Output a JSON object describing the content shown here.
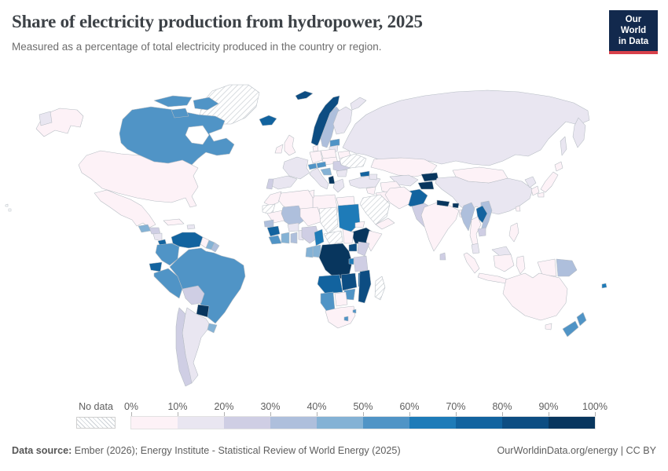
{
  "header": {
    "title": "Share of electricity production from hydropower, 2025",
    "subtitle": "Measured as a percentage of total electricity produced in the country or region."
  },
  "logo": {
    "line1": "Our World",
    "line2": "in Data",
    "bg_color": "#12294d",
    "accent_color": "#d8414b"
  },
  "legend": {
    "no_data_label": "No data",
    "tick_labels": [
      "0%",
      "10%",
      "20%",
      "30%",
      "40%",
      "50%",
      "60%",
      "70%",
      "80%",
      "90%",
      "100%"
    ],
    "colors": [
      "#fdf2f7",
      "#e9e6f1",
      "#cfcee4",
      "#aebfdc",
      "#84b2d5",
      "#5094c6",
      "#1e7bb8",
      "#12639f",
      "#0d4d82",
      "#08365e"
    ]
  },
  "footer": {
    "source_label": "Data source:",
    "source_text": " Ember (2026); Energy Institute - Statistical Review of World Energy (2025)",
    "right_text": "OurWorldinData.org/energy | CC BY"
  },
  "chart_data": {
    "type": "choropleth-map",
    "title": "Share of electricity production from hydropower, 2025",
    "unit": "% of total electricity production",
    "legend_buckets": [
      "0-10%",
      "10-20%",
      "20-30%",
      "30-40%",
      "40-50%",
      "50-60%",
      "60-70%",
      "70-80%",
      "80-90%",
      "90-100%"
    ],
    "format": "country: [bucket 1-10 matching legend colors, 0 = no data; approximate value in %]",
    "countries": {
      "greenland": [
        0,
        null
      ],
      "canada": [
        6,
        58
      ],
      "usa": [
        1,
        6
      ],
      "mexico": [
        1,
        4
      ],
      "guatemala": [
        5,
        42
      ],
      "honduras": [
        3,
        26
      ],
      "nicaragua": [
        2,
        14
      ],
      "costa-rica": [
        8,
        74
      ],
      "panama": [
        6,
        55
      ],
      "cuba": [
        1,
        1
      ],
      "dominican-republic": [
        2,
        12
      ],
      "venezuela": [
        8,
        73
      ],
      "colombia": [
        6,
        58
      ],
      "ecuador": [
        8,
        72
      ],
      "peru": [
        6,
        54
      ],
      "brazil": [
        6,
        57
      ],
      "bolivia": [
        3,
        26
      ],
      "paraguay": [
        10,
        100
      ],
      "argentina": [
        2,
        16
      ],
      "chile": [
        3,
        24
      ],
      "uruguay": [
        5,
        44
      ],
      "guyana": [
        1,
        3
      ],
      "suriname": [
        5,
        45
      ],
      "french-guiana": [
        4,
        35
      ],
      "iceland": [
        8,
        71
      ],
      "norway": [
        9,
        88
      ],
      "sweden": [
        4,
        38
      ],
      "finland": [
        2,
        15
      ],
      "denmark": [
        1,
        0
      ],
      "united-kingdom": [
        1,
        2
      ],
      "ireland": [
        1,
        2
      ],
      "france": [
        2,
        11
      ],
      "spain": [
        2,
        13
      ],
      "portugal": [
        3,
        23
      ],
      "germany": [
        1,
        4
      ],
      "switzerland": [
        6,
        56
      ],
      "austria": [
        6,
        58
      ],
      "czechia": [
        1,
        3
      ],
      "italy": [
        2,
        14
      ],
      "poland": [
        1,
        2
      ],
      "croatia": [
        5,
        45
      ],
      "romania": [
        3,
        27
      ],
      "bulgaria": [
        2,
        12
      ],
      "albania": [
        10,
        99
      ],
      "greece": [
        2,
        12
      ],
      "belarus": [
        1,
        2
      ],
      "ukraine": [
        0,
        null
      ],
      "latvia": [
        6,
        58
      ],
      "lithuania": [
        2,
        12
      ],
      "russia": [
        2,
        17
      ],
      "kazakhstan": [
        1,
        9
      ],
      "uzbekistan": [
        2,
        12
      ],
      "turkmenistan": [
        1,
        0
      ],
      "kyrgyzstan": [
        10,
        92
      ],
      "tajikistan": [
        10,
        93
      ],
      "afghanistan": [
        8,
        76
      ],
      "pakistan": [
        3,
        26
      ],
      "china": [
        2,
        13
      ],
      "mongolia": [
        1,
        5
      ],
      "north-korea": [
        2,
        15
      ],
      "south-korea": [
        1,
        1
      ],
      "japan": [
        1,
        8
      ],
      "taiwan": [
        1,
        3
      ],
      "india": [
        1,
        8
      ],
      "nepal": [
        10,
        97
      ],
      "bhutan": [
        10,
        99
      ],
      "bangladesh": [
        1,
        1
      ],
      "sri-lanka": [
        3,
        22
      ],
      "myanmar": [
        4,
        38
      ],
      "laos": [
        8,
        72
      ],
      "vietnam": [
        4,
        32
      ],
      "thailand": [
        1,
        4
      ],
      "cambodia": [
        3,
        28
      ],
      "malaysia": [
        2,
        16
      ],
      "indonesia": [
        1,
        7
      ],
      "papua-new-guinea": [
        4,
        32
      ],
      "philippines": [
        1,
        6
      ],
      "australia": [
        1,
        6
      ],
      "new-zealand": [
        6,
        57
      ],
      "fiji": [
        7,
        62
      ],
      "turkey": [
        2,
        18
      ],
      "georgia": [
        8,
        76
      ],
      "azerbaijan": [
        2,
        12
      ],
      "syria": [
        1,
        5
      ],
      "iraq": [
        1,
        2
      ],
      "iran": [
        1,
        3
      ],
      "saudi-arabia": [
        0,
        null
      ],
      "yemen": [
        1,
        0
      ],
      "egypt": [
        1,
        4
      ],
      "libya": [
        1,
        0
      ],
      "tunisia": [
        1,
        0
      ],
      "algeria": [
        1,
        0
      ],
      "morocco": [
        1,
        2
      ],
      "western-sahara": [
        0,
        null
      ],
      "mauritania": [
        1,
        3
      ],
      "mali": [
        4,
        34
      ],
      "senegal": [
        4,
        33
      ],
      "guinea": [
        8,
        74
      ],
      "sierra-leone": [
        6,
        55
      ],
      "cote-divoire": [
        5,
        42
      ],
      "ghana": [
        4,
        34
      ],
      "benin": [
        2,
        14
      ],
      "burkina-faso": [
        2,
        14
      ],
      "niger": [
        1,
        2
      ],
      "nigeria": [
        3,
        24
      ],
      "chad": [
        0,
        null
      ],
      "sudan": [
        7,
        62
      ],
      "eritrea": [
        1,
        0
      ],
      "ethiopia": [
        10,
        96
      ],
      "somalia": [
        1,
        0
      ],
      "cameroon": [
        7,
        64
      ],
      "central-african-republic": [
        0,
        null
      ],
      "south-sudan": [
        1,
        2
      ],
      "uganda": [
        9,
        84
      ],
      "kenya": [
        3,
        24
      ],
      "congo": [
        5,
        42
      ],
      "gabon": [
        5,
        43
      ],
      "dr-congo": [
        10,
        99
      ],
      "burundi": [
        7,
        64
      ],
      "tanzania": [
        3,
        26
      ],
      "angola": [
        8,
        72
      ],
      "zambia": [
        9,
        83
      ],
      "malawi": [
        8,
        74
      ],
      "mozambique": [
        9,
        81
      ],
      "zimbabwe": [
        6,
        54
      ],
      "botswana": [
        1,
        0
      ],
      "namibia": [
        6,
        58
      ],
      "south-africa": [
        1,
        1
      ],
      "lesotho": [
        6,
        55
      ],
      "eswatini": [
        6,
        55
      ],
      "madagascar": [
        0,
        null
      ]
    }
  }
}
